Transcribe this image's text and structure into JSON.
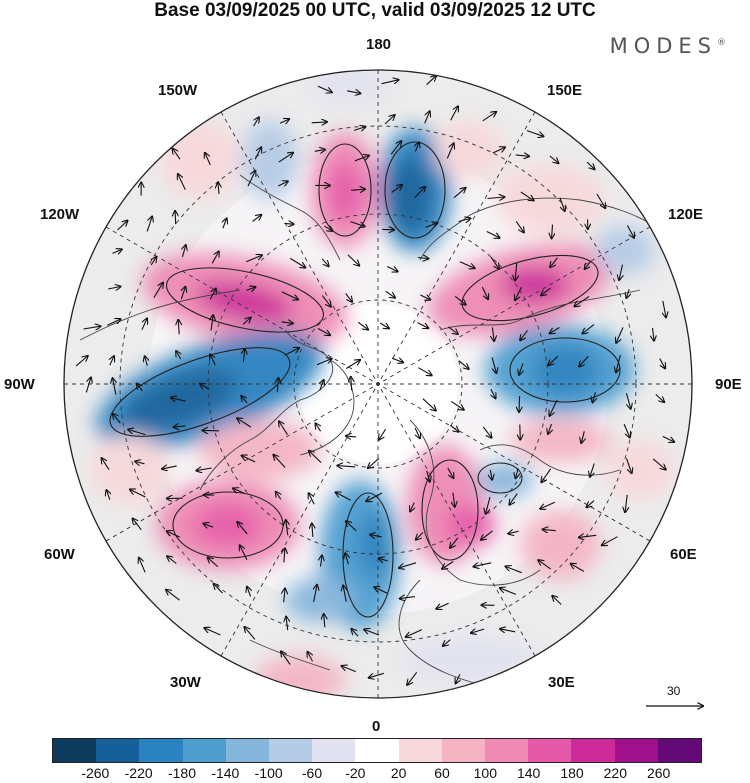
{
  "header": {
    "title": "Base 03/09/2025 00 UTC, valid 03/09/2025 12 UTC",
    "brand": "MODES",
    "brand_mark": "®"
  },
  "map": {
    "projection": "north-polar-stereographic",
    "longitude_labels": {
      "lon_180": "180",
      "lon_150e": "150E",
      "lon_120e": "120E",
      "lon_90e": "90E",
      "lon_60e": "60E",
      "lon_30e": "30E",
      "lon_0": "0",
      "lon_30w": "30W",
      "lon_60w": "60W",
      "lon_90w": "90W",
      "lon_120w": "120W",
      "lon_150w": "150W"
    },
    "wind_reference": "30"
  },
  "colorbar": {
    "colors": [
      "#0d3c5c",
      "#15609a",
      "#2a82c0",
      "#4e9ed0",
      "#86b6dc",
      "#b5cbe6",
      "#e2e2f0",
      "#ffffff",
      "#f8d8da",
      "#f4b4c4",
      "#ee8ab4",
      "#e55aa8",
      "#cc2a98",
      "#a0108a",
      "#640a78"
    ],
    "tick_labels": [
      "-260",
      "-220",
      "-180",
      "-140",
      "-100",
      "-60",
      "-20",
      "20",
      "60",
      "100",
      "140",
      "180",
      "220",
      "260"
    ]
  }
}
